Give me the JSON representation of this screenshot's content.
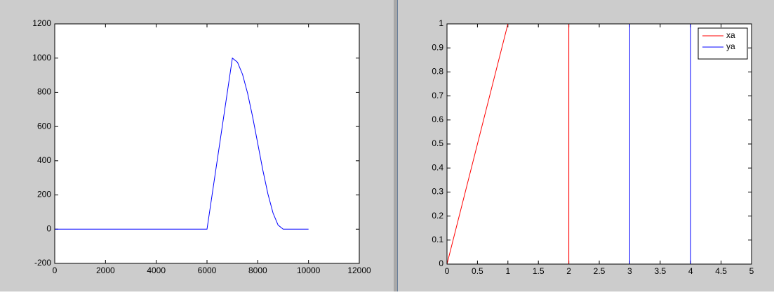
{
  "chart_data": [
    {
      "type": "line",
      "color": "#0000ff",
      "x": [
        0,
        6000,
        7000,
        7200,
        7400,
        7600,
        7800,
        8000,
        8200,
        8400,
        8600,
        8800,
        9000,
        10000
      ],
      "values": [
        0,
        0,
        1000,
        976,
        905,
        794,
        655,
        500,
        345,
        206,
        95,
        24,
        0,
        0
      ],
      "xlim": [
        0,
        12000
      ],
      "xticks": [
        0,
        2000,
        4000,
        6000,
        8000,
        10000,
        12000
      ],
      "ylim": [
        -200,
        1200
      ],
      "yticks": [
        -200,
        0,
        200,
        400,
        600,
        800,
        1000,
        1200
      ]
    },
    {
      "type": "line",
      "legend": "upper right",
      "series": [
        {
          "name": "xa",
          "color": "#ff0000",
          "x": [
            0,
            1,
            2,
            2,
            5
          ],
          "values": [
            0,
            1,
            1,
            0,
            0
          ]
        },
        {
          "name": "ya",
          "color": "#0000ff",
          "x": [
            0,
            3,
            3,
            4,
            4,
            5
          ],
          "values": [
            0,
            0,
            1,
            1,
            0,
            0
          ]
        }
      ],
      "xlim": [
        0,
        5
      ],
      "xticks": [
        0,
        0.5,
        1,
        1.5,
        2,
        2.5,
        3,
        3.5,
        4,
        4.5,
        5
      ],
      "ylim": [
        0,
        1
      ],
      "yticks": [
        0,
        0.1,
        0.2,
        0.3,
        0.4,
        0.5,
        0.6,
        0.7,
        0.8,
        0.9,
        1
      ]
    }
  ]
}
